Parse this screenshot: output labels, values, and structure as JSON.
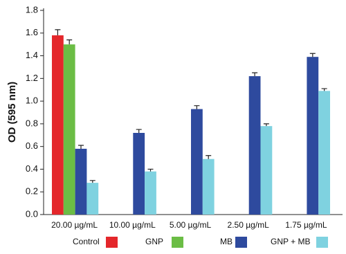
{
  "chart_data": {
    "type": "bar",
    "y_label": "OD (595 nm)",
    "categories": [
      "20.00 µg/mL",
      "10.00 µg/mL",
      "5.00 µg/mL",
      "2.50 µg/mL",
      "1.75 µg/mL"
    ],
    "series": [
      {
        "name": "Control",
        "color": "#e4272b",
        "values": [
          1.58,
          null,
          null,
          null,
          null
        ],
        "errors": [
          0.05,
          null,
          null,
          null,
          null
        ]
      },
      {
        "name": "GNP",
        "color": "#6bbd45",
        "values": [
          1.5,
          null,
          null,
          null,
          null
        ],
        "errors": [
          0.04,
          null,
          null,
          null,
          null
        ]
      },
      {
        "name": "MB",
        "color": "#2e4a9e",
        "values": [
          0.58,
          0.72,
          0.93,
          1.22,
          1.39
        ],
        "errors": [
          0.03,
          0.03,
          0.03,
          0.03,
          0.03
        ]
      },
      {
        "name": "GNP + MB",
        "color": "#7fd2e0",
        "values": [
          0.28,
          0.38,
          0.49,
          0.78,
          1.09
        ],
        "errors": [
          0.02,
          0.02,
          0.03,
          0.02,
          0.02
        ]
      }
    ],
    "ylim": [
      0,
      1.8
    ],
    "yticks": [
      {
        "value": 0,
        "label": "0.0"
      },
      {
        "value": 0.2,
        "label": "0.2"
      },
      {
        "value": 0.4,
        "label": "0.4"
      },
      {
        "value": 0.6,
        "label": "0.6"
      },
      {
        "value": 0.8,
        "label": "0.8"
      },
      {
        "value": 1,
        "label": "1.0"
      },
      {
        "value": 1.2,
        "label": "1.2"
      },
      {
        "value": 1.4,
        "label": "1.4"
      },
      {
        "value": 1.6,
        "label": "1.6"
      },
      {
        "value": 1.8,
        "label": "1.8"
      }
    ],
    "error_bars": true,
    "legend": "bottom"
  }
}
